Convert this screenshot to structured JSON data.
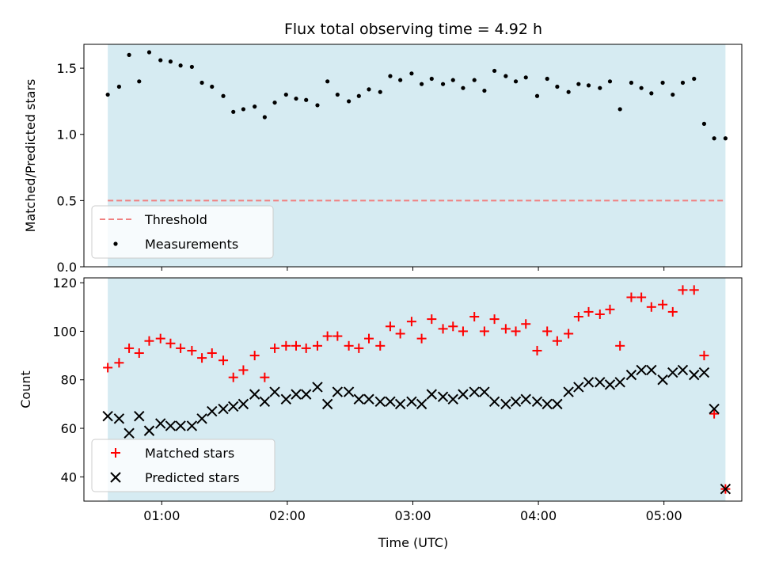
{
  "title": "Flux total observing time = 4.92 h",
  "colors": {
    "shade": "#add8e6",
    "threshold": "#f08080",
    "matched": "#ff0000",
    "predicted": "#000000",
    "measurement": "#000000"
  },
  "chart_data": [
    {
      "type": "scatter",
      "ylabel": "Matched/Predicted stars",
      "xlabel": "",
      "xlim": [
        0.38,
        5.62
      ],
      "ylim": [
        0,
        1.68
      ],
      "yticks": [
        0,
        0.5,
        1.0,
        1.5
      ],
      "ytick_labels": [
        "0.0",
        "0.5",
        "1.0",
        "1.5"
      ],
      "shaded_interval": [
        0.57,
        5.49
      ],
      "threshold": 0.5,
      "legend": {
        "position": "lower-left",
        "entries": [
          "Threshold",
          "Measurements"
        ]
      },
      "series": [
        {
          "name": "Measurements",
          "x": [
            0.57,
            0.66,
            0.74,
            0.82,
            0.9,
            0.99,
            1.07,
            1.15,
            1.24,
            1.32,
            1.4,
            1.49,
            1.57,
            1.65,
            1.74,
            1.82,
            1.9,
            1.99,
            2.07,
            2.15,
            2.24,
            2.32,
            2.4,
            2.49,
            2.57,
            2.65,
            2.74,
            2.82,
            2.9,
            2.99,
            3.07,
            3.15,
            3.24,
            3.32,
            3.4,
            3.49,
            3.57,
            3.65,
            3.74,
            3.82,
            3.9,
            3.99,
            4.07,
            4.15,
            4.24,
            4.32,
            4.4,
            4.49,
            4.57,
            4.65,
            4.74,
            4.82,
            4.9,
            4.99,
            5.07,
            5.15,
            5.24,
            5.32,
            5.4,
            5.49
          ],
          "y": [
            1.3,
            1.36,
            1.6,
            1.4,
            1.62,
            1.56,
            1.55,
            1.52,
            1.51,
            1.39,
            1.36,
            1.29,
            1.17,
            1.19,
            1.21,
            1.13,
            1.24,
            1.3,
            1.27,
            1.26,
            1.22,
            1.4,
            1.3,
            1.25,
            1.29,
            1.34,
            1.32,
            1.44,
            1.41,
            1.46,
            1.38,
            1.42,
            1.38,
            1.41,
            1.35,
            1.41,
            1.33,
            1.48,
            1.44,
            1.4,
            1.43,
            1.29,
            1.42,
            1.36,
            1.32,
            1.38,
            1.37,
            1.35,
            1.4,
            1.19,
            1.39,
            1.35,
            1.31,
            1.39,
            1.3,
            1.39,
            1.42,
            1.08,
            0.97,
            0.97
          ]
        }
      ]
    },
    {
      "type": "scatter",
      "ylabel": "Count",
      "xlabel": "Time (UTC)",
      "xlim": [
        0.38,
        5.62
      ],
      "ylim": [
        30,
        122
      ],
      "yticks": [
        40,
        60,
        80,
        100,
        120
      ],
      "ytick_labels": [
        "40",
        "60",
        "80",
        "100",
        "120"
      ],
      "xticks": [
        1,
        2,
        3,
        4,
        5
      ],
      "xtick_labels": [
        "01:00",
        "02:00",
        "03:00",
        "04:00",
        "05:00"
      ],
      "shaded_interval": [
        0.57,
        5.49
      ],
      "legend": {
        "position": "lower-left",
        "entries": [
          "Matched stars",
          "Predicted stars"
        ]
      },
      "x": [
        0.57,
        0.66,
        0.74,
        0.82,
        0.9,
        0.99,
        1.07,
        1.15,
        1.24,
        1.32,
        1.4,
        1.49,
        1.57,
        1.65,
        1.74,
        1.82,
        1.9,
        1.99,
        2.07,
        2.15,
        2.24,
        2.32,
        2.4,
        2.49,
        2.57,
        2.65,
        2.74,
        2.82,
        2.9,
        2.99,
        3.07,
        3.15,
        3.24,
        3.32,
        3.4,
        3.49,
        3.57,
        3.65,
        3.74,
        3.82,
        3.9,
        3.99,
        4.07,
        4.15,
        4.24,
        4.32,
        4.4,
        4.49,
        4.57,
        4.65,
        4.74,
        4.82,
        4.9,
        4.99,
        5.07,
        5.15,
        5.24,
        5.32,
        5.4,
        5.49
      ],
      "series": [
        {
          "name": "Matched stars",
          "marker": "+",
          "values": [
            85,
            87,
            93,
            91,
            96,
            97,
            95,
            93,
            92,
            89,
            91,
            88,
            81,
            84,
            90,
            81,
            93,
            94,
            94,
            93,
            94,
            98,
            98,
            94,
            93,
            97,
            94,
            102,
            99,
            104,
            97,
            105,
            101,
            102,
            100,
            106,
            100,
            105,
            101,
            100,
            103,
            92,
            100,
            96,
            99,
            106,
            108,
            107,
            109,
            94,
            114,
            114,
            110,
            111,
            108,
            117,
            117,
            90,
            66,
            35
          ]
        },
        {
          "name": "Predicted stars",
          "marker": "x",
          "values": [
            65,
            64,
            58,
            65,
            59,
            62,
            61,
            61,
            61,
            64,
            67,
            68,
            69,
            70,
            74,
            71,
            75,
            72,
            74,
            74,
            77,
            70,
            75,
            75,
            72,
            72,
            71,
            71,
            70,
            71,
            70,
            74,
            73,
            72,
            74,
            75,
            75,
            71,
            70,
            71,
            72,
            71,
            70,
            70,
            75,
            77,
            79,
            79,
            78,
            79,
            82,
            84,
            84,
            80,
            83,
            84,
            82,
            83,
            68,
            35
          ]
        }
      ]
    }
  ],
  "legend": {
    "threshold": "Threshold",
    "measurements": "Measurements",
    "matched": "Matched stars",
    "predicted": "Predicted stars"
  }
}
